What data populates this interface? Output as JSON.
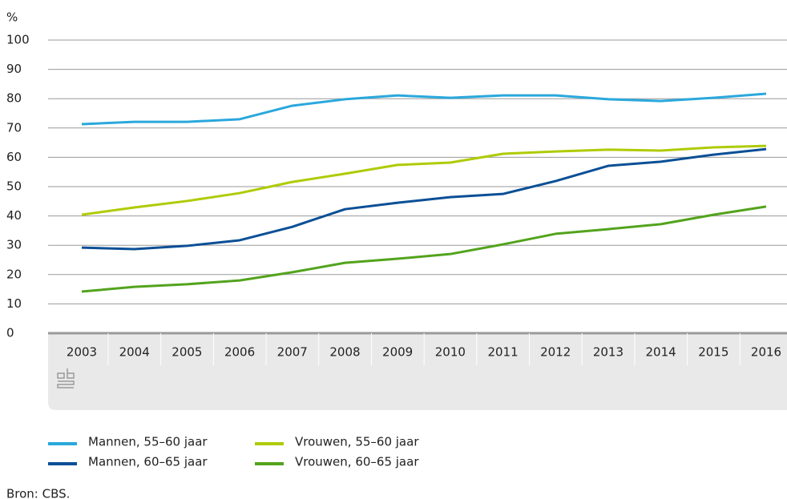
{
  "chart_data": {
    "type": "line",
    "y_label": "%",
    "categories": [
      "2003",
      "2004",
      "2005",
      "2006",
      "2007",
      "2008",
      "2009",
      "2010",
      "2011",
      "2012",
      "2013",
      "2014",
      "2015",
      "2016"
    ],
    "series": [
      {
        "name": "Mannen, 55–60 jaar",
        "color": "#2aa8dc",
        "values": [
          71.3,
          72.1,
          72.1,
          73,
          77.6,
          79.8,
          81.1,
          80.3,
          81.1,
          81.1,
          79.8,
          79.2,
          80.3,
          81.7
        ]
      },
      {
        "name": "Mannen, 60–65 jaar",
        "color": "#0a4f96",
        "values": [
          29.2,
          28.7,
          29.8,
          31.7,
          36.3,
          42.3,
          44.5,
          46.4,
          47.5,
          51.9,
          57.1,
          58.5,
          60.9,
          62.8
        ]
      },
      {
        "name": "Vrouwen, 55–60 jaar",
        "color": "#afcb05",
        "values": [
          40.4,
          42.9,
          45.1,
          47.8,
          51.6,
          54.4,
          57.4,
          58.2,
          61.2,
          62,
          62.6,
          62.3,
          63.4,
          63.9
        ]
      },
      {
        "name": "Vrouwen, 60–65 jaar",
        "color": "#53a31d",
        "values": [
          14.2,
          15.8,
          16.7,
          18,
          20.8,
          24,
          25.4,
          27,
          30.3,
          33.9,
          35.5,
          37.2,
          40.4,
          43.2
        ]
      }
    ],
    "ylim": [
      0,
      100
    ],
    "yticks": [
      0,
      10,
      20,
      30,
      40,
      50,
      60,
      70,
      80,
      90,
      100
    ],
    "grid": true,
    "source": "Bron: CBS."
  }
}
